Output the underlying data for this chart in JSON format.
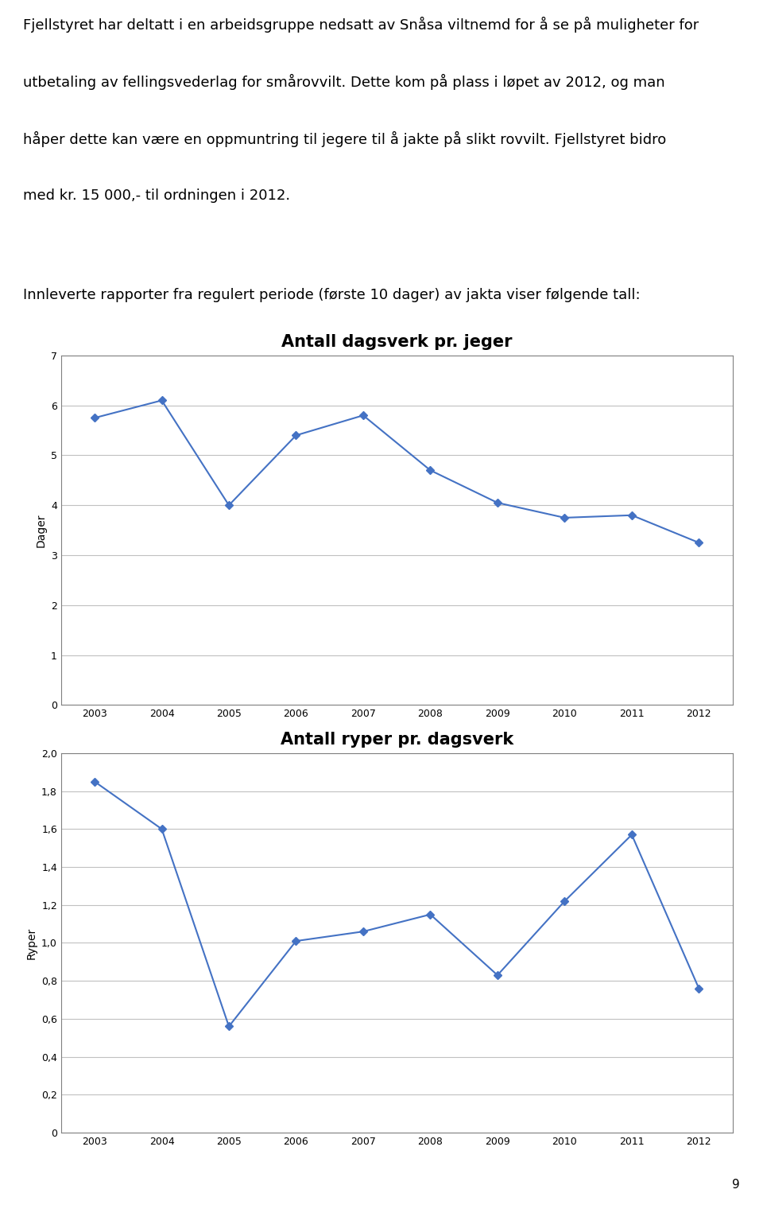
{
  "text_line1": "Fjellstyret har deltatt i en arbeidsgruppe nedsatt av Snåsa viltnemd for å se på muligheter for",
  "text_line2": "utbetaling av fellingsvederlag for smårovvilt. Dette kom på plass i løpet av 2012, og man",
  "text_line3": "håper dette kan være en oppmuntring til jegere til å jakte på slikt rovvilt. Fjellstyret bidro",
  "text_line4": "med kr. 15 000,- til ordningen i 2012.",
  "text_intro": "Innleverte rapporter fra regulert periode (første 10 dager) av jakta viser følgende tall:",
  "page_number": "9",
  "years": [
    2003,
    2004,
    2005,
    2006,
    2007,
    2008,
    2009,
    2010,
    2011,
    2012
  ],
  "chart1_title": "Antall dagsverk pr. jeger",
  "chart1_ylabel": "Dager",
  "chart1_values": [
    5.75,
    6.1,
    4.0,
    5.4,
    5.8,
    4.7,
    4.05,
    3.75,
    3.8,
    3.25
  ],
  "chart1_ylim": [
    0,
    7
  ],
  "chart1_yticks": [
    0,
    1,
    2,
    3,
    4,
    5,
    6,
    7
  ],
  "chart2_title": "Antall ryper pr. dagsverk",
  "chart2_ylabel": "Ryper",
  "chart2_values": [
    1.85,
    1.6,
    0.56,
    1.01,
    1.06,
    1.15,
    0.83,
    1.22,
    1.57,
    0.76
  ],
  "chart2_ylim": [
    0,
    2
  ],
  "chart2_yticks": [
    0,
    0.2,
    0.4,
    0.6,
    0.8,
    1.0,
    1.2,
    1.4,
    1.6,
    1.8,
    2.0
  ],
  "line_color": "#4472C4",
  "marker": "D",
  "marker_size": 5,
  "chart_border_color": "#808080",
  "grid_color": "#C0C0C0",
  "background_color": "#FFFFFF",
  "title_fontsize": 15,
  "axis_label_fontsize": 10,
  "tick_fontsize": 9,
  "text_fontsize": 13.0
}
